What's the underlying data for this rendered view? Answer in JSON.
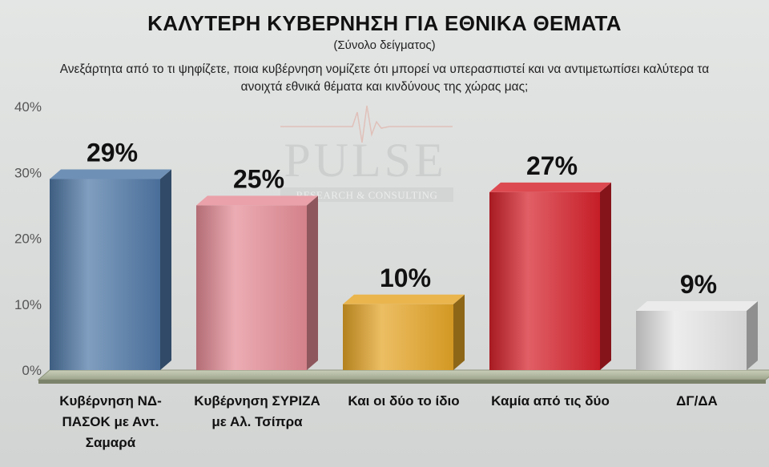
{
  "chart_data": {
    "type": "bar",
    "title": "ΚΑΛΥΤΕΡΗ ΚΥΒΕΡΝΗΣΗ ΓΙΑ ΕΘΝΙΚΑ ΘΕΜΑΤΑ",
    "subtitle": "(Σύνολο δείγματος)",
    "question": "Ανεξάρτητα από το τι ψηφίζετε, ποια κυβέρνηση νομίζετε ότι μπορεί να υπερασπιστεί και να αντιμετωπίσει καλύτερα τα ανοιχτά εθνικά θέματα και κινδύνους της χώρας μας;",
    "categories": [
      "Κυβέρνηση ΝΔ-ΠΑΣΟΚ με Αντ. Σαμαρά",
      "Κυβέρνηση ΣΥΡΙΖΑ με Αλ. Τσίπρα",
      "Και οι δύο το ίδιο",
      "Καμία από τις δύο",
      "ΔΓ/ΔΑ"
    ],
    "values": [
      29,
      25,
      10,
      27,
      9
    ],
    "data_labels": [
      "29%",
      "25%",
      "10%",
      "27%",
      "9%"
    ],
    "bar_colors": [
      "#4f78a6",
      "#e58c96",
      "#e5a526",
      "#d6212a",
      "#e6e6e6"
    ],
    "y_ticks": [
      "0%",
      "10%",
      "20%",
      "30%",
      "40%"
    ],
    "ylim": [
      0,
      40
    ],
    "grid": false,
    "legend": "none",
    "watermark": {
      "name": "PULSE",
      "tagline": "RESEARCH & CONSULTING"
    }
  }
}
